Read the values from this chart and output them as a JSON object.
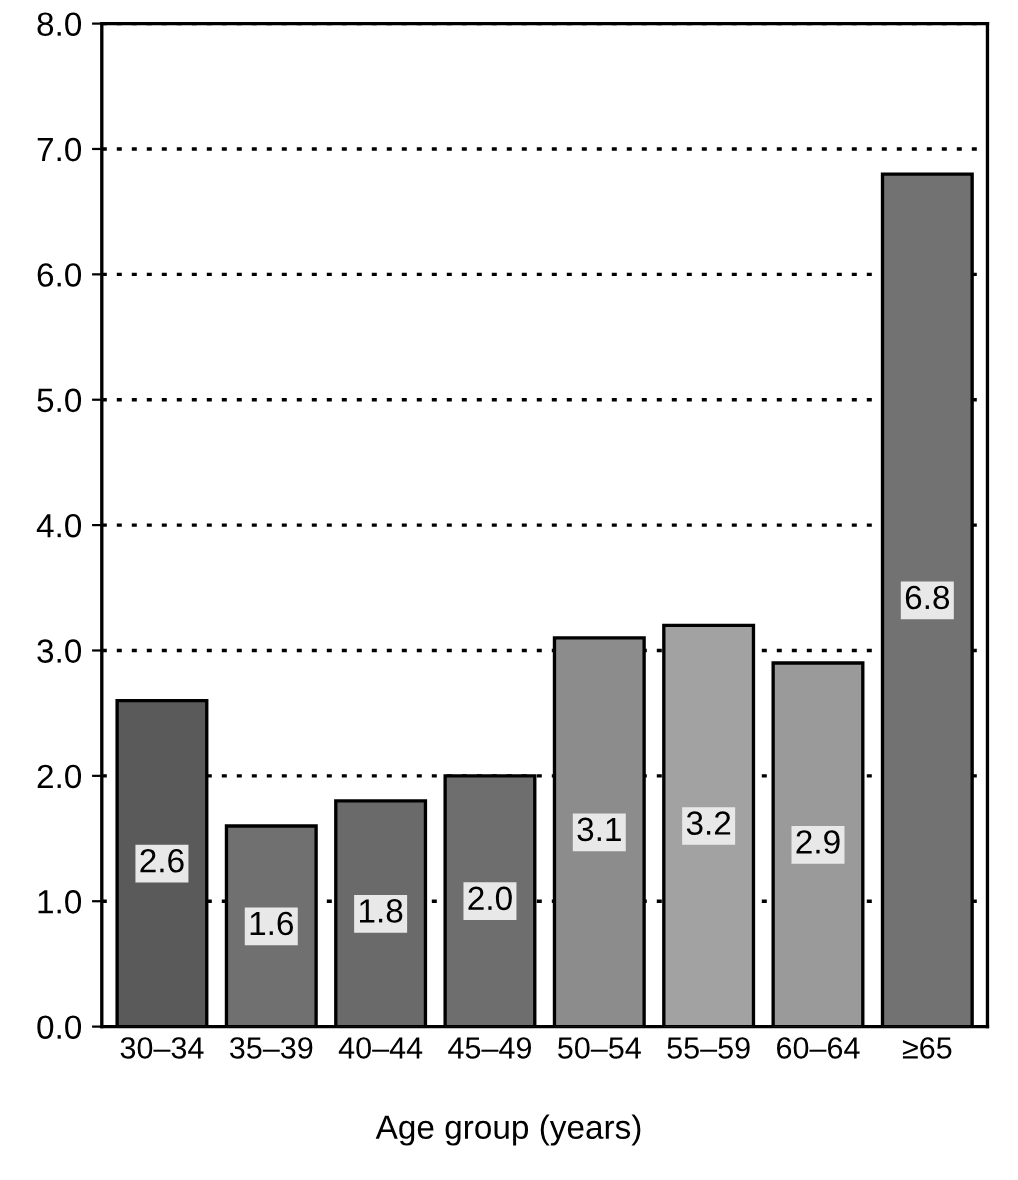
{
  "chart_data": {
    "type": "bar",
    "xlabel": "Age group (years)",
    "categories": [
      "30–34",
      "35–39",
      "40–44",
      "45–49",
      "50–54",
      "55–59",
      "60–64",
      "≥65"
    ],
    "values": [
      2.6,
      1.6,
      1.8,
      2.0,
      3.1,
      3.2,
      2.9,
      6.8
    ],
    "colors": [
      "#5a5a5a",
      "#707070",
      "#6a6a6a",
      "#6e6e6e",
      "#8c8c8c",
      "#a2a2a2",
      "#9a9a9a",
      "#727272"
    ],
    "value_labels": [
      "2.6",
      "1.6",
      "1.8",
      "2.0",
      "3.1",
      "3.2",
      "2.9",
      "6.8"
    ],
    "ylim": [
      0,
      8
    ],
    "yticks": [
      {
        "value": 0,
        "label": "0.0"
      },
      {
        "value": 1,
        "label": "1.0"
      },
      {
        "value": 2,
        "label": "2.0"
      },
      {
        "value": 3,
        "label": "3.0"
      },
      {
        "value": 4,
        "label": "4.0"
      },
      {
        "value": 5,
        "label": "5.0"
      },
      {
        "value": 6,
        "label": "6.0"
      },
      {
        "value": 7,
        "label": "7.0"
      },
      {
        "value": 8,
        "label": "8.0"
      }
    ],
    "grid": "y"
  }
}
